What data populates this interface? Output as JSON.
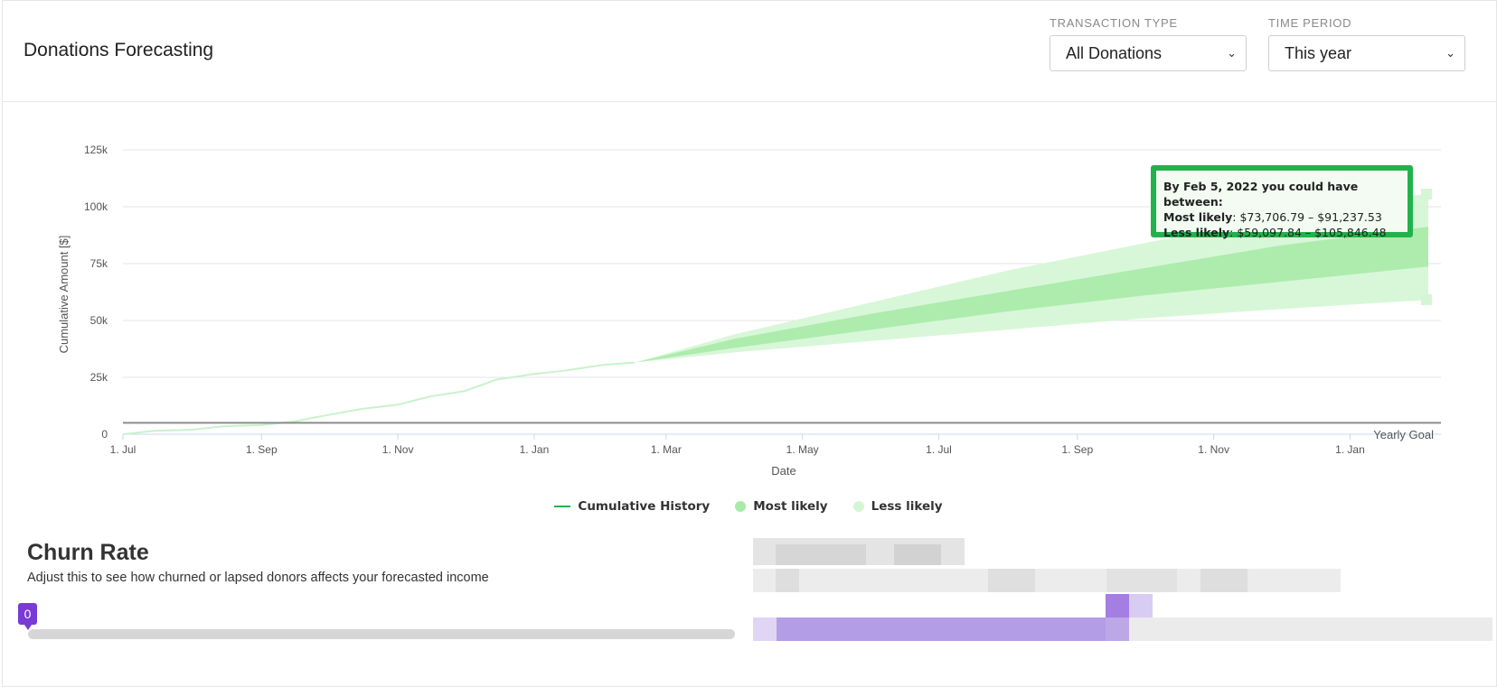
{
  "header": {
    "title": "Donations Forecasting",
    "transaction_type": {
      "label": "TRANSACTION TYPE",
      "value": "All Donations"
    },
    "time_period": {
      "label": "TIME PERIOD",
      "value": "This year"
    }
  },
  "chart_data": {
    "type": "area",
    "xlabel": "Date",
    "ylabel": "Cumulative Amount [$]",
    "ylim": [
      0,
      125000
    ],
    "y_ticks": [
      "0",
      "25k",
      "50k",
      "75k",
      "100k",
      "125k"
    ],
    "x_ticks": [
      "1. Jul",
      "1. Sep",
      "1. Nov",
      "1. Jan",
      "1. Mar",
      "1. May",
      "1. Jul",
      "1. Sep",
      "1. Nov",
      "1. Jan"
    ],
    "x_range": [
      "2020-07-01",
      "2022-02-05"
    ],
    "grid": true,
    "legend_position": "bottom",
    "yearly_goal": {
      "label": "Yearly Goal",
      "value": 5000
    },
    "series": [
      {
        "name": "Cumulative History",
        "color": "#c9f2cc",
        "x": [
          "2020-07-01",
          "2020-07-15",
          "2020-08-01",
          "2020-08-15",
          "2020-09-01",
          "2020-09-15",
          "2020-10-01",
          "2020-10-15",
          "2020-11-01",
          "2020-11-15",
          "2020-12-01",
          "2020-12-15",
          "2021-01-01",
          "2021-01-15",
          "2021-02-01",
          "2021-02-15"
        ],
        "values": [
          0,
          1500,
          2000,
          3500,
          4000,
          5500,
          8500,
          11000,
          13000,
          16500,
          19000,
          24000,
          26500,
          28000,
          30500,
          31500
        ]
      },
      {
        "name": "Most likely",
        "color": "#a9eaa9",
        "x": [
          "2021-02-15",
          "2021-04-01",
          "2021-06-01",
          "2021-08-01",
          "2021-10-01",
          "2021-12-01",
          "2022-02-05"
        ],
        "low": [
          31500,
          38000,
          46000,
          54000,
          61000,
          67000,
          73706.79
        ],
        "high": [
          31500,
          42000,
          53000,
          63000,
          73000,
          83000,
          91237.53
        ]
      },
      {
        "name": "Less likely",
        "color": "#d4f6d4",
        "x": [
          "2021-02-15",
          "2021-04-01",
          "2021-06-01",
          "2021-08-01",
          "2021-10-01",
          "2021-12-01",
          "2022-02-05"
        ],
        "low": [
          31500,
          36000,
          41000,
          46000,
          51000,
          55000,
          59097.84
        ],
        "high": [
          31500,
          44000,
          58000,
          72000,
          84000,
          96000,
          105846.48
        ]
      }
    ]
  },
  "tooltip": {
    "line1": "By Feb 5, 2022 you could have between:",
    "most_label": "Most likely",
    "most_range": ": $73,706.79 – $91,237.53",
    "less_label": "Less likely",
    "less_range": ": $59,097.84 – $105,846.48"
  },
  "legend": {
    "history": "Cumulative History",
    "most": "Most likely",
    "less": "Less likely"
  },
  "churn": {
    "title": "Churn Rate",
    "description": "Adjust this to see how churned or lapsed donors affects your forecasted income",
    "slider_value": "0"
  },
  "colors": {
    "accent_green": "#22b24c",
    "slider_purple": "#7a3ad6",
    "most_likely": "#a9eaa9",
    "less_likely": "#d4f6d4"
  }
}
